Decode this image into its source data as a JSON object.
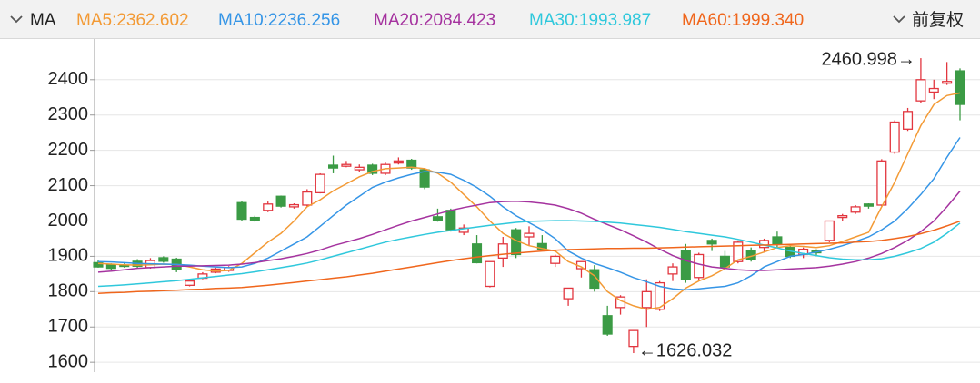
{
  "chart_data": {
    "type": "candlestick",
    "indicator": "MA",
    "adjust": "前复权",
    "max_label": "2460.998→",
    "min_label": "←1626.032",
    "ylim": [
      1585,
      2510
    ],
    "yticks": [
      1600,
      1700,
      1800,
      1900,
      2000,
      2100,
      2200,
      2300,
      2400
    ],
    "grid": true,
    "up_color": "#e2363f",
    "down_color": "#3b9b45",
    "open": [
      1882,
      1876,
      1874,
      1886,
      1868,
      1896,
      1892,
      1818,
      1838,
      1855,
      1860,
      2052,
      2010,
      2030,
      2070,
      2040,
      2045,
      2080,
      2158,
      2155,
      2145,
      2158,
      2135,
      2164,
      2172,
      2145,
      2012,
      2030,
      1968,
      1935,
      1815,
      1895,
      1975,
      1955,
      1936,
      1880,
      1780,
      1865,
      1862,
      1732,
      1755,
      1645,
      1755,
      1750,
      1850,
      1915,
      1840,
      1945,
      1900,
      1885,
      1915,
      1925,
      1955,
      1925,
      1905,
      1915,
      1945,
      2010,
      2025,
      2048,
      2045,
      2195,
      2260,
      2340,
      2365,
      2390,
      2425
    ],
    "high": [
      1888,
      1880,
      1880,
      1892,
      1895,
      1900,
      1896,
      1835,
      1855,
      1868,
      1872,
      2056,
      2015,
      2055,
      2072,
      2050,
      2090,
      2135,
      2185,
      2170,
      2160,
      2162,
      2165,
      2180,
      2176,
      2150,
      2035,
      2035,
      1990,
      1960,
      1885,
      1955,
      1980,
      1985,
      1960,
      1905,
      1810,
      1885,
      1875,
      1760,
      1790,
      1690,
      1835,
      1830,
      1880,
      1935,
      1910,
      1950,
      1915,
      1945,
      1925,
      1950,
      1970,
      1935,
      1925,
      1920,
      2000,
      2020,
      2045,
      2050,
      2175,
      2285,
      2320,
      2460.998,
      2400,
      2450,
      2432
    ],
    "low": [
      1868,
      1862,
      1868,
      1866,
      1865,
      1882,
      1855,
      1815,
      1835,
      1852,
      1856,
      2000,
      1998,
      2025,
      2038,
      2035,
      2040,
      2078,
      2135,
      2152,
      2140,
      2130,
      2130,
      2160,
      2145,
      2090,
      1998,
      1970,
      1960,
      1880,
      1812,
      1870,
      1895,
      1930,
      1915,
      1870,
      1760,
      1840,
      1800,
      1675,
      1735,
      1626.032,
      1700,
      1745,
      1830,
      1825,
      1830,
      1915,
      1865,
      1880,
      1885,
      1910,
      1925,
      1895,
      1895,
      1900,
      1940,
      2000,
      2020,
      2035,
      2042,
      2190,
      2255,
      2335,
      2345,
      2385,
      2285
    ],
    "close": [
      1870,
      1866,
      1872,
      1872,
      1888,
      1886,
      1862,
      1830,
      1850,
      1864,
      1868,
      2005,
      2002,
      2048,
      2042,
      2046,
      2082,
      2132,
      2150,
      2160,
      2152,
      2135,
      2160,
      2170,
      2150,
      2096,
      2002,
      1975,
      1980,
      1882,
      1885,
      1935,
      1905,
      1965,
      1920,
      1900,
      1810,
      1885,
      1810,
      1680,
      1785,
      1690,
      1800,
      1825,
      1870,
      1835,
      1905,
      1935,
      1870,
      1940,
      1890,
      1945,
      1935,
      1900,
      1920,
      1910,
      2000,
      2015,
      2040,
      2042,
      2170,
      2280,
      2310,
      2400,
      2375,
      2395,
      2330
    ],
    "series": [
      {
        "name": "MA5:2362.602",
        "color": "#f39a35",
        "values": [
          1880,
          1878,
          1876,
          1875,
          1876,
          1878,
          1877,
          1870,
          1862,
          1858,
          1860,
          1880,
          1910,
          1940,
          1965,
          2000,
          2040,
          2060,
          2085,
          2105,
          2125,
          2140,
          2148,
          2150,
          2152,
          2148,
          2135,
          2110,
          2075,
          2040,
          2000,
          1965,
          1945,
          1930,
          1922,
          1915,
          1885,
          1870,
          1845,
          1800,
          1775,
          1760,
          1750,
          1755,
          1780,
          1810,
          1830,
          1845,
          1865,
          1890,
          1900,
          1912,
          1925,
          1930,
          1928,
          1925,
          1930,
          1942,
          1955,
          1968,
          2040,
          2110,
          2190,
          2270,
          2330,
          2355,
          2362.602
        ]
      },
      {
        "name": "MA10:2236.256",
        "color": "#3595e6",
        "values": [
          1885,
          1884,
          1882,
          1880,
          1879,
          1878,
          1877,
          1875,
          1872,
          1870,
          1868,
          1870,
          1880,
          1895,
          1915,
          1935,
          1955,
          1985,
          2015,
          2045,
          2070,
          2095,
          2110,
          2122,
          2132,
          2140,
          2138,
          2132,
          2115,
          2095,
          2070,
          2040,
          2015,
          1995,
          1975,
          1950,
          1915,
          1895,
          1880,
          1868,
          1855,
          1840,
          1828,
          1815,
          1808,
          1805,
          1808,
          1812,
          1815,
          1825,
          1845,
          1870,
          1885,
          1900,
          1905,
          1912,
          1920,
          1930,
          1942,
          1955,
          1975,
          2000,
          2035,
          2075,
          2120,
          2180,
          2236.256
        ]
      },
      {
        "name": "MA20:2084.423",
        "color": "#a5339f",
        "values": [
          1855,
          1858,
          1862,
          1866,
          1868,
          1870,
          1872,
          1872,
          1873,
          1874,
          1875,
          1878,
          1882,
          1888,
          1893,
          1900,
          1908,
          1918,
          1930,
          1940,
          1950,
          1962,
          1975,
          1988,
          2000,
          2010,
          2020,
          2030,
          2038,
          2045,
          2052,
          2055,
          2056,
          2054,
          2050,
          2045,
          2035,
          2022,
          2005,
          1990,
          1975,
          1958,
          1940,
          1920,
          1902,
          1888,
          1878,
          1870,
          1866,
          1862,
          1860,
          1860,
          1862,
          1864,
          1866,
          1868,
          1872,
          1878,
          1885,
          1895,
          1908,
          1925,
          1945,
          1970,
          2000,
          2040,
          2084.423
        ]
      },
      {
        "name": "MA30:1993.987",
        "color": "#2fc8dc",
        "values": [
          1815,
          1817,
          1819,
          1822,
          1825,
          1828,
          1831,
          1835,
          1839,
          1843,
          1847,
          1851,
          1856,
          1862,
          1868,
          1874,
          1881,
          1890,
          1900,
          1910,
          1920,
          1930,
          1940,
          1948,
          1955,
          1962,
          1968,
          1973,
          1978,
          1983,
          1988,
          1992,
          1996,
          1999,
          2000,
          2001,
          2001,
          2000,
          1999,
          1997,
          1994,
          1990,
          1986,
          1982,
          1976,
          1970,
          1965,
          1960,
          1955,
          1948,
          1940,
          1932,
          1924,
          1915,
          1908,
          1902,
          1896,
          1892,
          1890,
          1890,
          1893,
          1900,
          1910,
          1922,
          1940,
          1965,
          1993.987
        ]
      },
      {
        "name": "MA60:1999.340",
        "color": "#f0661c",
        "values": [
          1795,
          1797,
          1798,
          1800,
          1801,
          1803,
          1804,
          1806,
          1807,
          1809,
          1810,
          1812,
          1815,
          1818,
          1822,
          1826,
          1830,
          1834,
          1838,
          1842,
          1847,
          1852,
          1858,
          1864,
          1870,
          1876,
          1882,
          1888,
          1893,
          1898,
          1902,
          1906,
          1909,
          1912,
          1915,
          1917,
          1919,
          1920,
          1921,
          1922,
          1922,
          1923,
          1923,
          1924,
          1925,
          1926,
          1927,
          1928,
          1929,
          1930,
          1931,
          1932,
          1933,
          1934,
          1935,
          1936,
          1937,
          1938,
          1940,
          1942,
          1945,
          1950,
          1956,
          1964,
          1974,
          1986,
          1999.34
        ]
      }
    ]
  }
}
